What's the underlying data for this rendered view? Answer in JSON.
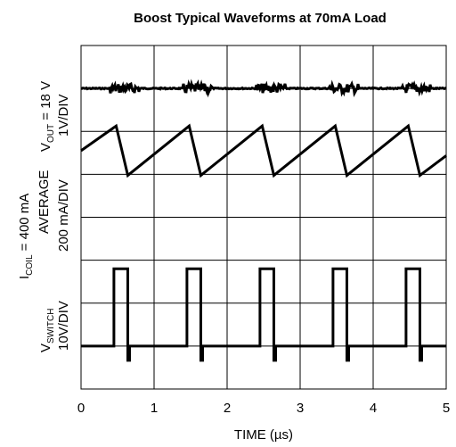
{
  "chart_data": {
    "type": "line",
    "title": "Boost Typical Waveforms at 70mA Load",
    "xlabel": "TIME (µs)",
    "x_ticks": [
      "0",
      "1",
      "2",
      "3",
      "4",
      "5"
    ],
    "xlim": [
      0,
      5
    ],
    "grid": true,
    "channels": [
      {
        "name": "VOUT",
        "label_parts": {
          "main": "V",
          "sub": "OUT",
          "tail": " = 18 V"
        },
        "scale": "1V/DIV",
        "waveform": "dc-with-switching-noise",
        "noise_bursts_us": [
          0.6,
          1.6,
          2.6,
          3.6,
          4.6
        ]
      },
      {
        "name": "ICOIL",
        "label_parts": {
          "main": "I",
          "sub": "COIL",
          "tail": " = 400 mA"
        },
        "label_line2": "AVERAGE",
        "scale": "200 mA/DIV",
        "waveform": "sawtooth",
        "period_us": 1.0,
        "rise_us": 0.48,
        "fall_us": 0.16,
        "points": [
          {
            "x": 0.0,
            "y": 0.5
          },
          {
            "x": 0.48,
            "y": 0.75
          },
          {
            "x": 0.64,
            "y": 0.25
          },
          {
            "x": 1.48,
            "y": 0.75
          },
          {
            "x": 1.64,
            "y": 0.25
          },
          {
            "x": 2.48,
            "y": 0.75
          },
          {
            "x": 2.64,
            "y": 0.25
          },
          {
            "x": 3.48,
            "y": 0.75
          },
          {
            "x": 3.64,
            "y": 0.25
          },
          {
            "x": 4.48,
            "y": 0.75
          },
          {
            "x": 4.64,
            "y": 0.25
          },
          {
            "x": 5.0,
            "y": 0.45
          }
        ]
      },
      {
        "name": "VSWITCH",
        "label_parts": {
          "main": "V",
          "sub": "SWITCH",
          "tail": ""
        },
        "scale": "10V/DIV",
        "waveform": "pulse",
        "pulses_us": [
          [
            0.45,
            0.64
          ],
          [
            1.45,
            1.64
          ],
          [
            2.45,
            2.64
          ],
          [
            3.45,
            3.64
          ],
          [
            4.45,
            4.64
          ]
        ]
      }
    ]
  }
}
